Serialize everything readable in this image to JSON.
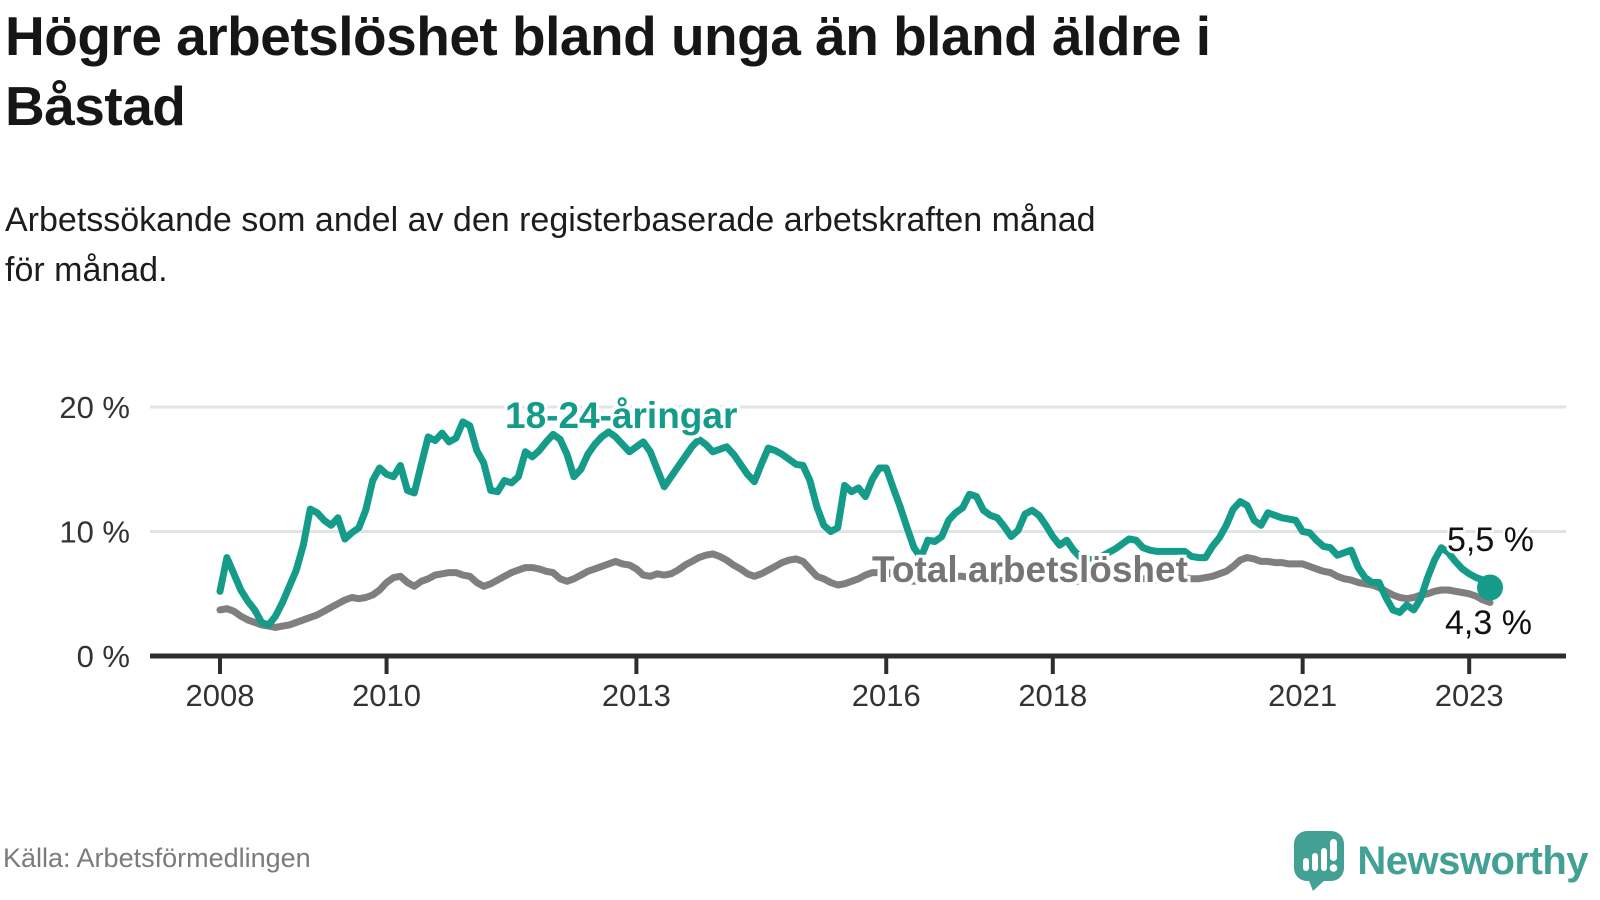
{
  "title": {
    "line1": "Högre arbetslöshet bland unga än bland äldre i",
    "line2": "Båstad"
  },
  "subtitle": {
    "line1": "Arbetssökande som andel av den registerbaserade arbetskraften månad",
    "line2": "för månad."
  },
  "source": "Källa: Arbetsförmedlingen",
  "brand": {
    "name": "Newsworthy",
    "color": "#43a094",
    "icon": "bar-chart-speech-bubble-icon"
  },
  "chart_data": {
    "type": "line",
    "x_start": "2008-01",
    "x_end": "2023-04",
    "x_interval": "monthly",
    "xticks": [
      2008,
      2010,
      2013,
      2016,
      2018,
      2021,
      2023
    ],
    "yticks": [
      {
        "value": 0,
        "label": "0 %"
      },
      {
        "value": 10,
        "label": "10 %"
      },
      {
        "value": 20,
        "label": "20 %"
      }
    ],
    "ylim": [
      0,
      22
    ],
    "grid": "horizontal",
    "legend_position": "inline-labels",
    "end_labels": {
      "youth": "5,5 %",
      "total": "4,3 %"
    },
    "series": [
      {
        "name": "18-24-åringar",
        "color": "#149b8a",
        "values": [
          5.2,
          7.9,
          6.6,
          5.3,
          4.4,
          3.7,
          2.7,
          2.5,
          3.2,
          4.3,
          5.6,
          6.9,
          8.9,
          11.8,
          11.5,
          10.9,
          10.5,
          11.1,
          9.4,
          9.9,
          10.3,
          11.7,
          14.1,
          15.1,
          14.6,
          14.4,
          15.3,
          13.3,
          13.1,
          15.4,
          17.6,
          17.3,
          17.9,
          17.2,
          17.5,
          18.8,
          18.5,
          16.5,
          15.5,
          13.3,
          13.2,
          14.1,
          13.9,
          14.4,
          16.4,
          16.0,
          16.5,
          17.2,
          17.8,
          17.4,
          16.2,
          14.4,
          15.0,
          16.2,
          17.0,
          17.6,
          18.0,
          17.6,
          17.0,
          16.4,
          16.8,
          17.2,
          16.4,
          15.0,
          13.6,
          14.4,
          15.2,
          16.0,
          16.8,
          17.4,
          17.0,
          16.4,
          16.6,
          16.8,
          16.2,
          15.4,
          14.6,
          14.0,
          15.4,
          16.7,
          16.5,
          16.2,
          15.8,
          15.4,
          15.3,
          14.1,
          12.0,
          10.5,
          10.0,
          10.3,
          13.7,
          13.2,
          13.5,
          12.8,
          14.2,
          15.1,
          15.1,
          13.5,
          12.0,
          10.3,
          8.7,
          7.9,
          9.3,
          9.2,
          9.6,
          10.9,
          11.5,
          11.9,
          13.0,
          12.8,
          11.7,
          11.3,
          11.1,
          10.4,
          9.6,
          10.1,
          11.4,
          11.7,
          11.3,
          10.5,
          9.6,
          8.9,
          9.3,
          8.5,
          7.9,
          7.7,
          7.8,
          8.0,
          8.3,
          8.6,
          9.0,
          9.4,
          9.3,
          8.7,
          8.5,
          8.4,
          8.4,
          8.4,
          8.4,
          8.4,
          8.0,
          7.9,
          7.9,
          8.8,
          9.5,
          10.5,
          11.8,
          12.4,
          12.1,
          10.9,
          10.5,
          11.5,
          11.3,
          11.1,
          11.0,
          10.9,
          10.0,
          9.9,
          9.3,
          8.8,
          8.7,
          8.1,
          8.3,
          8.5,
          7.1,
          6.3,
          5.9,
          5.9,
          4.7,
          3.7,
          3.5,
          4.1,
          3.7,
          4.6,
          6.3,
          7.7,
          8.7,
          8.3,
          7.6,
          7.0,
          6.6,
          6.3,
          6.1,
          5.5
        ]
      },
      {
        "name": "Total arbetslöshet",
        "color": "#7f7f7f",
        "values": [
          3.7,
          3.8,
          3.6,
          3.2,
          2.9,
          2.7,
          2.5,
          2.4,
          2.3,
          2.4,
          2.5,
          2.7,
          2.9,
          3.1,
          3.3,
          3.6,
          3.9,
          4.2,
          4.5,
          4.7,
          4.6,
          4.7,
          4.9,
          5.3,
          5.9,
          6.3,
          6.4,
          5.9,
          5.6,
          6.0,
          6.2,
          6.5,
          6.6,
          6.7,
          6.7,
          6.5,
          6.4,
          5.9,
          5.6,
          5.8,
          6.1,
          6.4,
          6.7,
          6.9,
          7.1,
          7.1,
          7.0,
          6.8,
          6.7,
          6.2,
          6.0,
          6.2,
          6.5,
          6.8,
          7.0,
          7.2,
          7.4,
          7.6,
          7.4,
          7.3,
          7.0,
          6.5,
          6.4,
          6.6,
          6.5,
          6.6,
          6.9,
          7.3,
          7.6,
          7.9,
          8.1,
          8.2,
          8.0,
          7.7,
          7.3,
          7.0,
          6.6,
          6.4,
          6.6,
          6.9,
          7.2,
          7.5,
          7.7,
          7.8,
          7.6,
          7.0,
          6.4,
          6.2,
          5.9,
          5.7,
          5.8,
          6.0,
          6.2,
          6.5,
          6.7,
          6.7,
          6.8,
          6.5,
          6.3,
          6.1,
          6.0,
          6.1,
          6.3,
          6.4,
          6.5,
          6.5,
          6.4,
          6.4,
          6.3,
          6.2,
          6.1,
          6.1,
          6.0,
          6.1,
          6.2,
          6.3,
          6.4,
          6.4,
          6.3,
          6.3,
          6.2,
          6.2,
          6.1,
          6.0,
          6.0,
          6.1,
          6.2,
          6.3,
          6.3,
          6.3,
          6.2,
          6.3,
          6.3,
          6.2,
          6.2,
          6.1,
          6.1,
          6.2,
          6.3,
          6.3,
          6.2,
          6.2,
          6.3,
          6.4,
          6.6,
          6.8,
          7.2,
          7.7,
          7.9,
          7.8,
          7.6,
          7.6,
          7.5,
          7.5,
          7.4,
          7.4,
          7.4,
          7.2,
          7.0,
          6.8,
          6.7,
          6.4,
          6.2,
          6.1,
          5.9,
          5.8,
          5.7,
          5.5,
          5.2,
          4.9,
          4.7,
          4.6,
          4.7,
          4.9,
          5.0,
          5.2,
          5.3,
          5.3,
          5.2,
          5.1,
          5.0,
          4.8,
          4.5,
          4.3
        ]
      }
    ]
  }
}
